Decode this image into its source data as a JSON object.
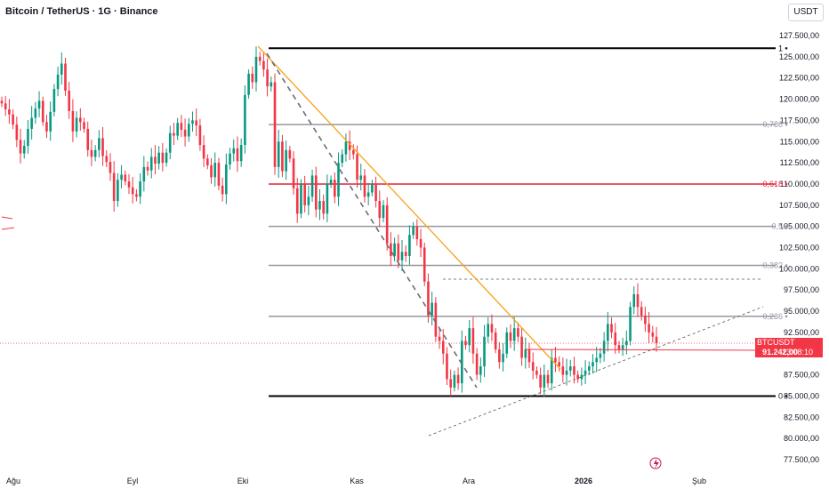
{
  "header": {
    "title": "Bitcoin / TetherUS · 1G · Binance",
    "currency": "USDT"
  },
  "price_tag": {
    "symbol": "BTCUSDT",
    "price": "91.242,00",
    "countdown": "13:08:10",
    "price_value": 91242,
    "color": "#f23645"
  },
  "colors": {
    "up": "#089981",
    "down": "#f23645",
    "fib_gray": "#9598a1",
    "fib_red": "#e0243a",
    "trend_orange": "#f7a21b",
    "level_black": "#000000"
  },
  "chart_data": {
    "type": "candlestick",
    "title": "",
    "ylim": [
      76000,
      129000
    ],
    "y_ticks": [
      77500,
      80000,
      82500,
      85000,
      87500,
      90000,
      92500,
      95000,
      97500,
      100000,
      102500,
      105000,
      107500,
      110000,
      112500,
      115000,
      117500,
      120000,
      122500,
      125000,
      127500
    ],
    "y_tick_labels": [
      "77.500,00",
      "80.000,00",
      "82.500,00",
      "85.000,00",
      "87.500,00",
      "90.000,00",
      "92.500,00",
      "95.000,00",
      "97.500,00",
      "100.000,00",
      "102.500,00",
      "105.000,00",
      "107.500,00",
      "110.000,00",
      "112.500,00",
      "115.000,00",
      "117.500,00",
      "120.000,00",
      "122.500,00",
      "125.000,00",
      "127.500,00"
    ],
    "x_ticks": [
      {
        "label": "Ağu",
        "bold": false
      },
      {
        "label": "Eyl",
        "bold": false
      },
      {
        "label": "Eki",
        "bold": false
      },
      {
        "label": "Kas",
        "bold": false
      },
      {
        "label": "Ara",
        "bold": false
      },
      {
        "label": "2026",
        "bold": true
      },
      {
        "label": "Şub",
        "bold": false
      }
    ],
    "fib_levels": [
      {
        "label": "1",
        "value": 126000,
        "style": "black"
      },
      {
        "label": "0,786",
        "value": 117000,
        "style": "gray"
      },
      {
        "label": "0,618",
        "value": 110000,
        "style": "red"
      },
      {
        "label": "0,5",
        "value": 105000,
        "style": "gray"
      },
      {
        "label": "0,382",
        "value": 100400,
        "style": "gray"
      },
      {
        "label": "0,236",
        "value": 94400,
        "style": "gray"
      },
      {
        "label": "0",
        "value": 85000,
        "style": "black"
      }
    ],
    "closes": [
      119500,
      118800,
      118200,
      117000,
      115200,
      113600,
      114500,
      116500,
      117800,
      118900,
      119800,
      117300,
      116200,
      118500,
      121200,
      122900,
      124200,
      121000,
      118600,
      116200,
      117800,
      117300,
      116500,
      114000,
      113200,
      114000,
      115400,
      113300,
      112600,
      111300,
      108000,
      110500,
      111100,
      110300,
      109600,
      108800,
      108500,
      110300,
      112000,
      111600,
      113200,
      112400,
      113700,
      112500,
      113700,
      116000,
      115700,
      117200,
      116400,
      115600,
      117100,
      117500,
      116900,
      114600,
      113000,
      112200,
      110800,
      112500,
      109800,
      108800,
      112300,
      113600,
      114200,
      112700,
      114600,
      120500,
      123000,
      122000,
      125000,
      124500,
      123500,
      121500,
      122000,
      112000,
      115000,
      111500,
      114000,
      113000,
      109500,
      106500,
      110000,
      107500,
      108500,
      111000,
      107000,
      108000,
      106500,
      110000,
      110500,
      108500,
      112500,
      113500,
      115000,
      114000,
      113500,
      110500,
      111000,
      108500,
      109000,
      110000,
      108000,
      106000,
      107500,
      103000,
      101500,
      103000,
      101000,
      102000,
      101500,
      104000,
      105000,
      103500,
      102500,
      98500,
      94500,
      96000,
      92000,
      91500,
      90000,
      87000,
      86000,
      87500,
      86500,
      91500,
      91000,
      93000,
      90000,
      87500,
      88500,
      92000,
      93500,
      92500,
      90500,
      89000,
      90000,
      92500,
      91500,
      93000,
      92000,
      89500,
      90500,
      89000,
      88000,
      87500,
      86000,
      87500,
      86500,
      89500,
      89000,
      88500,
      87500,
      88000,
      88500,
      87500,
      87000,
      87500,
      88000,
      88500,
      89000,
      89500,
      90000,
      91500,
      93500,
      92500,
      91000,
      90500,
      91000,
      91500,
      95500,
      97000,
      95500,
      94500,
      93500,
      92500,
      92000,
      91242
    ]
  }
}
